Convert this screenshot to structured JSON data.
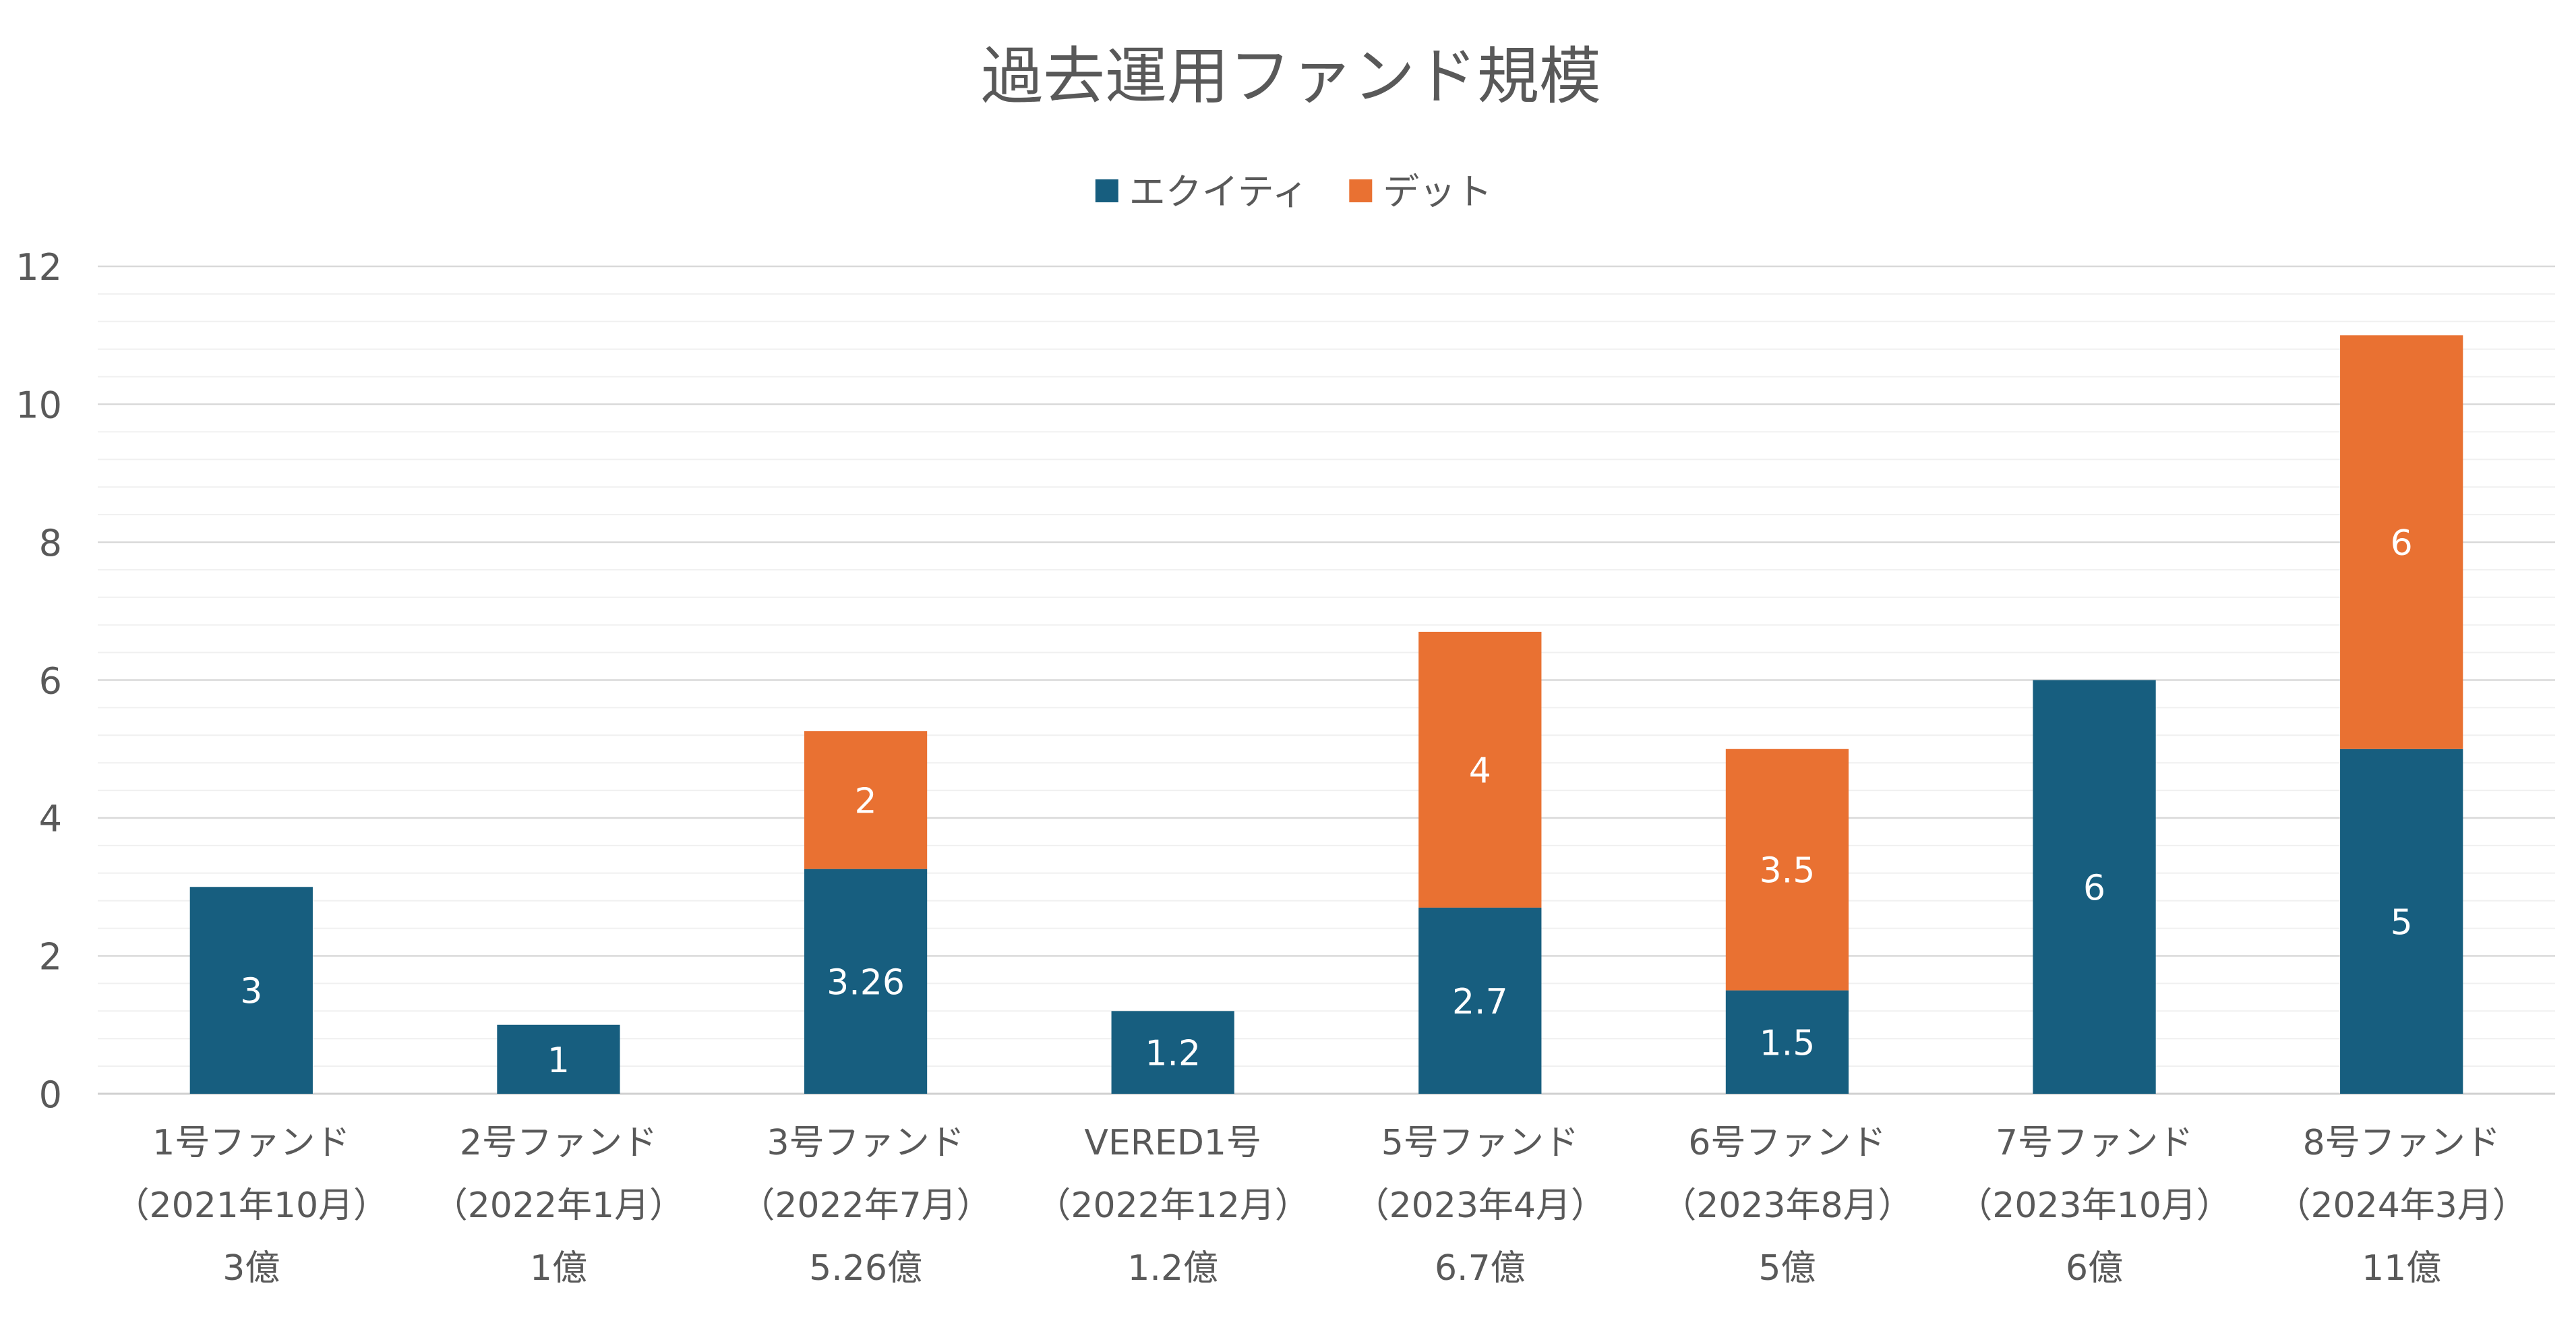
{
  "chart_data": {
    "type": "bar",
    "stacked": true,
    "title": "過去運用ファンド規模",
    "xlabel": "",
    "ylabel": "",
    "ylim": [
      0,
      12
    ],
    "yticks": [
      0,
      2,
      4,
      6,
      8,
      10,
      12
    ],
    "grid": true,
    "legend_position": "top-center",
    "categories": [
      [
        "1号ファンド",
        "（2021年10月）",
        "3億"
      ],
      [
        "2号ファンド",
        "（2022年1月）",
        "1億"
      ],
      [
        "3号ファンド",
        "（2022年7月）",
        "5.26億"
      ],
      [
        "VERED1号",
        "（2022年12月）",
        "1.2億"
      ],
      [
        "5号ファンド",
        "（2023年4月）",
        "6.7億"
      ],
      [
        "6号ファンド",
        "（2023年8月）",
        "5億"
      ],
      [
        "7号ファンド",
        "（2023年10月）",
        "6億"
      ],
      [
        "8号ファンド",
        "（2024年3月）",
        "11億"
      ]
    ],
    "series": [
      {
        "name": "エクイティ",
        "color": "#175E7F",
        "values": [
          3,
          1,
          3.26,
          1.2,
          2.7,
          1.5,
          6,
          5
        ]
      },
      {
        "name": "デット",
        "color": "#E97132",
        "values": [
          null,
          null,
          2,
          null,
          4,
          3.5,
          null,
          6
        ]
      }
    ]
  }
}
